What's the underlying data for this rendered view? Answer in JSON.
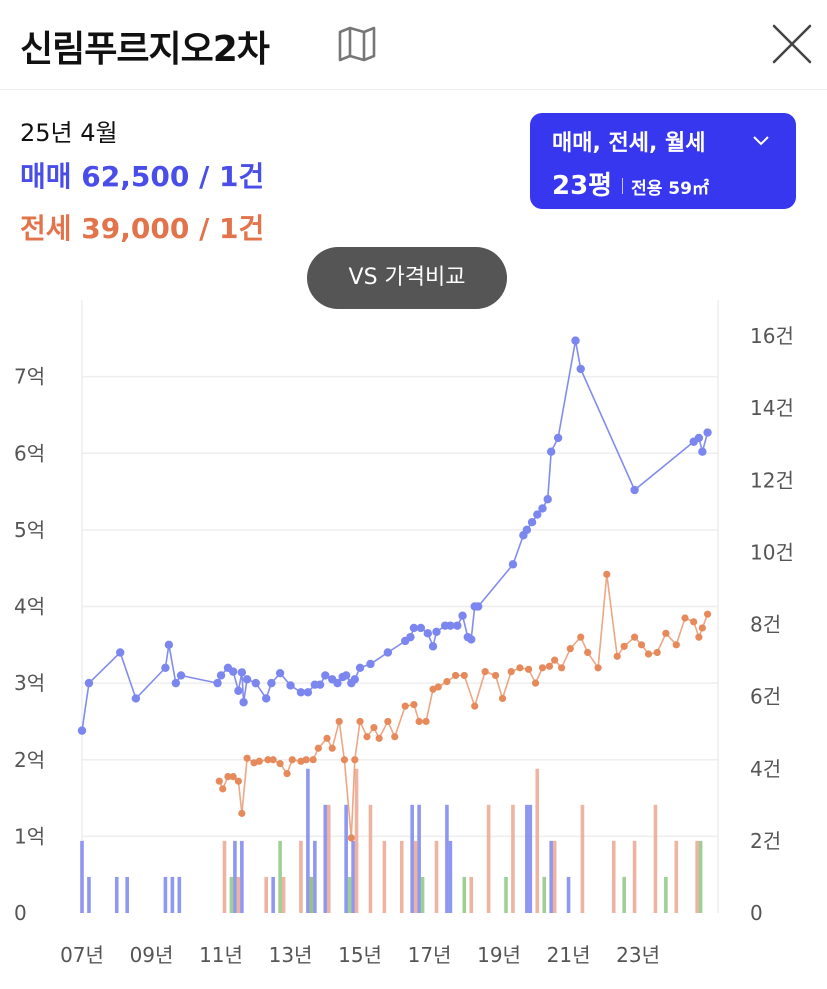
{
  "header": {
    "title": "신림푸르지오2차",
    "map_icon": "map-icon",
    "close_icon": "close-icon"
  },
  "summary": {
    "date": "25년 4월",
    "sale": "매매 62,500 / 1건",
    "jeonse": "전세 39,000 / 1건"
  },
  "filter": {
    "trade_types": "매매, 전세, 월세",
    "pyeong": "23평",
    "area": "전용 59㎡",
    "chevron_icon": "chevron-down-icon"
  },
  "compare_button": {
    "label": "VS 가격비교"
  },
  "colors": {
    "sale": "#7b86ee",
    "jeonse": "#e68a5c",
    "jeonse_bar": "#eba18a",
    "monthly_bar": "#86c47a",
    "filter_bg": "#3737f0"
  },
  "chart_data": {
    "type": "line",
    "x_ticks": [
      2007,
      2009,
      2011,
      2013,
      2015,
      2017,
      2019,
      2021,
      2023
    ],
    "x_tick_labels": [
      "07년",
      "09년",
      "11년",
      "13년",
      "15년",
      "17년",
      "19년",
      "21년",
      "23년"
    ],
    "x_range": [
      2007.0,
      2025.3
    ],
    "left_axis": {
      "unit": "억",
      "ylim": [
        0,
        8
      ],
      "ticks": [
        0,
        1,
        2,
        3,
        4,
        5,
        6,
        7
      ],
      "tick_labels": [
        "0",
        "1억",
        "2억",
        "3억",
        "4억",
        "5억",
        "6억",
        "7억"
      ]
    },
    "right_axis": {
      "unit": "건",
      "ylim": [
        0,
        17
      ],
      "ticks": [
        0,
        2,
        4,
        6,
        8,
        10,
        12,
        14,
        16
      ],
      "tick_labels": [
        "0",
        "2건",
        "4건",
        "6건",
        "8건",
        "10건",
        "12건",
        "14건",
        "16건"
      ]
    },
    "grid": true,
    "series": [
      {
        "name": "매매",
        "x": [
          2007.0,
          2007.2,
          2008.1,
          2008.55,
          2009.4,
          2009.5,
          2009.7,
          2009.85,
          2010.9,
          2011.0,
          2011.2,
          2011.35,
          2011.5,
          2011.6,
          2011.65,
          2011.75,
          2012.0,
          2012.3,
          2012.45,
          2012.7,
          2013.0,
          2013.3,
          2013.5,
          2013.7,
          2013.85,
          2014.0,
          2014.2,
          2014.35,
          2014.5,
          2014.6,
          2014.75,
          2014.85,
          2015.0,
          2015.3,
          2015.8,
          2016.3,
          2016.45,
          2016.55,
          2016.75,
          2016.95,
          2017.1,
          2017.2,
          2017.45,
          2017.6,
          2017.8,
          2017.95,
          2018.1,
          2018.2,
          2018.3,
          2018.4,
          2019.4,
          2019.7,
          2019.8,
          2019.95,
          2020.1,
          2020.25,
          2020.4,
          2020.5,
          2020.7,
          2021.2,
          2021.35,
          2022.9,
          2024.6,
          2024.75,
          2024.85,
          2025.0
        ],
        "values": [
          2.38,
          3.0,
          3.4,
          2.8,
          3.2,
          3.5,
          3.0,
          3.1,
          3.0,
          3.1,
          3.2,
          3.15,
          2.9,
          3.14,
          2.75,
          3.05,
          3.0,
          2.8,
          3.0,
          3.13,
          2.97,
          2.88,
          2.88,
          2.98,
          2.98,
          3.1,
          3.05,
          3.0,
          3.08,
          3.1,
          3.0,
          3.05,
          3.2,
          3.25,
          3.4,
          3.55,
          3.6,
          3.72,
          3.72,
          3.65,
          3.48,
          3.67,
          3.75,
          3.75,
          3.75,
          3.88,
          3.6,
          3.57,
          4.0,
          4.0,
          4.55,
          4.93,
          5.0,
          5.1,
          5.2,
          5.28,
          5.4,
          6.02,
          6.2,
          7.47,
          7.1,
          5.52,
          6.15,
          6.2,
          6.02,
          6.27
        ]
      },
      {
        "name": "전세",
        "x": [
          2010.95,
          2011.05,
          2011.2,
          2011.35,
          2011.5,
          2011.6,
          2011.75,
          2011.95,
          2012.1,
          2012.35,
          2012.5,
          2012.7,
          2012.9,
          2013.05,
          2013.3,
          2013.45,
          2013.65,
          2013.8,
          2014.05,
          2014.2,
          2014.4,
          2014.55,
          2014.75,
          2014.85,
          2015.0,
          2015.2,
          2015.4,
          2015.55,
          2015.8,
          2016.0,
          2016.3,
          2016.55,
          2016.7,
          2016.9,
          2017.1,
          2017.25,
          2017.5,
          2017.75,
          2018.0,
          2018.3,
          2018.6,
          2018.9,
          2019.1,
          2019.35,
          2019.6,
          2019.85,
          2020.05,
          2020.25,
          2020.45,
          2020.6,
          2020.8,
          2021.05,
          2021.35,
          2021.55,
          2021.85,
          2022.1,
          2022.4,
          2022.6,
          2022.9,
          2023.1,
          2023.3,
          2023.55,
          2023.8,
          2024.1,
          2024.35,
          2024.6,
          2024.75,
          2024.85,
          2025.0
        ],
        "values": [
          1.72,
          1.62,
          1.78,
          1.78,
          1.72,
          1.3,
          2.02,
          1.96,
          1.98,
          2.0,
          2.0,
          1.95,
          1.82,
          2.0,
          1.98,
          2.0,
          2.0,
          2.15,
          2.28,
          2.15,
          2.5,
          2.0,
          0.98,
          2.0,
          2.5,
          2.3,
          2.42,
          2.28,
          2.5,
          2.3,
          2.7,
          2.72,
          2.5,
          2.5,
          2.92,
          2.95,
          3.02,
          3.1,
          3.1,
          2.7,
          3.15,
          3.1,
          2.8,
          3.15,
          3.2,
          3.18,
          3.0,
          3.2,
          3.22,
          3.3,
          3.2,
          3.45,
          3.6,
          3.4,
          3.2,
          4.42,
          3.35,
          3.48,
          3.6,
          3.5,
          3.38,
          3.4,
          3.65,
          3.5,
          3.85,
          3.8,
          3.6,
          3.72,
          3.9
        ]
      }
    ],
    "volume_series": [
      {
        "name": "매매",
        "x": [
          2007.0,
          2007.2,
          2008.0,
          2008.3,
          2009.4,
          2009.6,
          2009.8,
          2011.4,
          2011.6,
          2012.5,
          2013.5,
          2013.7,
          2014.0,
          2014.6,
          2014.8,
          2016.5,
          2016.7,
          2017.5,
          2017.6,
          2019.8,
          2019.9,
          2020.5,
          2021.0
        ],
        "values": [
          2,
          1,
          1,
          1,
          1,
          1,
          1,
          2,
          2,
          1,
          4,
          2,
          3,
          3,
          2,
          3,
          3,
          3,
          2,
          3,
          3,
          2,
          1
        ]
      },
      {
        "name": "전세",
        "x": [
          2011.1,
          2011.5,
          2012.3,
          2012.8,
          2013.3,
          2013.6,
          2014.1,
          2014.9,
          2015.3,
          2015.7,
          2016.2,
          2016.6,
          2017.2,
          2018.2,
          2018.7,
          2019.4,
          2020.1,
          2020.6,
          2021.4,
          2022.3,
          2022.9,
          2023.5,
          2024.1,
          2024.7
        ],
        "values": [
          2,
          1,
          1,
          1,
          2,
          1,
          3,
          4,
          3,
          2,
          2,
          2,
          2,
          1,
          3,
          3,
          4,
          2,
          3,
          2,
          2,
          3,
          2,
          2
        ]
      },
      {
        "name": "월세",
        "x": [
          2011.3,
          2012.7,
          2013.6,
          2014.7,
          2016.8,
          2018.0,
          2019.2,
          2020.3,
          2022.6,
          2023.8,
          2024.8
        ],
        "values": [
          1,
          2,
          1,
          1,
          1,
          1,
          1,
          1,
          1,
          1,
          2
        ]
      }
    ]
  }
}
